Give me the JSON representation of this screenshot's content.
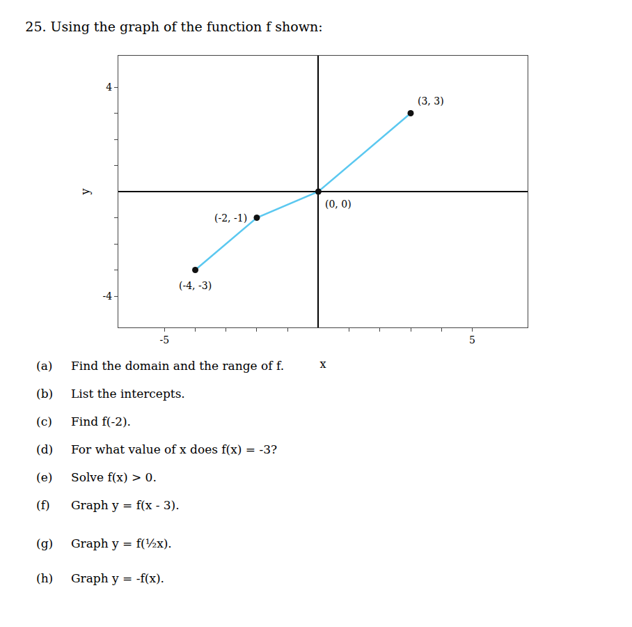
{
  "chart_data": {
    "type": "line",
    "title": "25. Using the graph of the function f shown:",
    "x_label": "x",
    "y_label": "y",
    "series": [
      {
        "type": "line",
        "color": "#5bc8f0",
        "x": [
          -4,
          -2,
          0,
          3
        ],
        "values": [
          -3,
          -1,
          0,
          3
        ]
      },
      {
        "type": "scatter",
        "color": "#111111",
        "marker": "circle",
        "x": [
          -4,
          -2,
          0,
          3
        ],
        "values": [
          -3,
          -1,
          0,
          3
        ]
      }
    ],
    "xlim": [
      -6.5,
      6.8
    ],
    "ylim": [
      -5.2,
      5.2
    ],
    "xticks": [
      -5,
      {
        "value": -4,
        "label": null
      },
      {
        "value": -3,
        "label": null
      },
      {
        "value": -2,
        "label": null
      },
      {
        "value": -1,
        "label": null
      },
      {
        "value": 1,
        "label": null
      },
      {
        "value": 2,
        "label": null
      },
      {
        "value": 3,
        "label": null
      },
      {
        "value": 4,
        "label": null
      },
      5
    ],
    "yticks": [
      -4,
      {
        "value": -3,
        "label": null
      },
      {
        "value": -2,
        "label": null
      },
      {
        "value": -1,
        "label": null
      },
      {
        "value": 1,
        "label": null
      },
      {
        "value": 2,
        "label": null
      },
      {
        "value": 3,
        "label": null
      },
      4
    ],
    "grid": false,
    "annotations": [
      {
        "text": "(-4, -3)",
        "x": -4,
        "y": -3
      },
      {
        "text": "(-2, -1)",
        "x": -2,
        "y": -1
      },
      {
        "text": "(0, 0)",
        "x": 0,
        "y": 0
      },
      {
        "text": "(3, 3)",
        "x": 3,
        "y": 3
      }
    ],
    "questions": [
      {
        "label": "(a)",
        "text": "Find the domain and the range of f."
      },
      {
        "label": "(b)",
        "text": "List the intercepts."
      },
      {
        "label": "(c)",
        "text": "Find f(-2)."
      },
      {
        "label": "(d)",
        "text": "For what value of x does f(x) = -3?"
      },
      {
        "label": "(e)",
        "text": "Solve f(x) > 0."
      },
      {
        "label": "(f)",
        "text": "Graph y = f(x - 3)."
      },
      {
        "label": "(g)",
        "text": "Graph y = f(½x)."
      },
      {
        "label": "(h)",
        "text": "Graph y = -f(x)."
      }
    ]
  }
}
